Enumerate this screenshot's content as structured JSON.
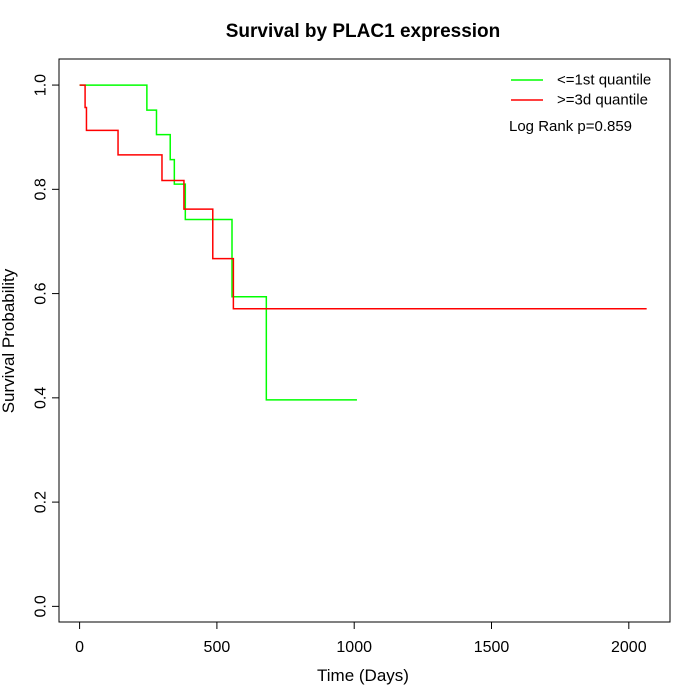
{
  "chart_data": {
    "type": "line",
    "title": "Survival by PLAC1 expression",
    "xlabel": "Time (Days)",
    "ylabel": "Survival Probability",
    "xlim": [
      -75,
      2150
    ],
    "ylim": [
      -0.03,
      1.05
    ],
    "x_ticks": [
      0,
      500,
      1000,
      1500,
      2000
    ],
    "x_tick_labels": [
      "0",
      "500",
      "1000",
      "1500",
      "2000"
    ],
    "y_ticks": [
      0.0,
      0.2,
      0.4,
      0.6,
      0.8,
      1.0
    ],
    "y_tick_labels": [
      "0.0",
      "0.2",
      "0.4",
      "0.6",
      "0.8",
      "1.0"
    ],
    "grid": false,
    "legend_position": "top-right",
    "annotation": "Log Rank p=0.859",
    "series": [
      {
        "name": "<=1st quantile",
        "color": "#00ff00",
        "step_x": [
          0,
          245,
          280,
          330,
          345,
          385,
          555,
          680,
          1010
        ],
        "step_y": [
          1.0,
          0.952,
          0.905,
          0.857,
          0.81,
          0.742,
          0.594,
          0.396,
          0.396
        ]
      },
      {
        "name": ">=3d quantile",
        "color": "#ff0000",
        "step_x": [
          0,
          20,
          25,
          140,
          300,
          380,
          485,
          555,
          560,
          2065
        ],
        "step_y": [
          1.0,
          0.957,
          0.913,
          0.866,
          0.817,
          0.762,
          0.667,
          0.667,
          0.571,
          0.571
        ]
      }
    ]
  }
}
